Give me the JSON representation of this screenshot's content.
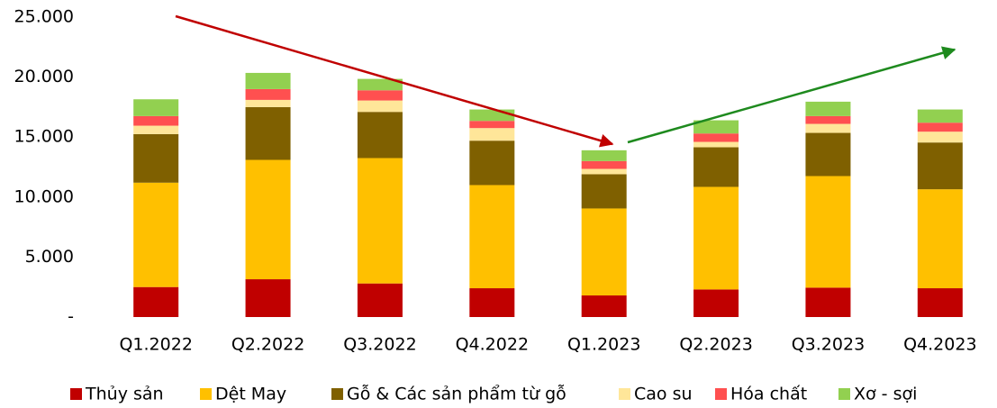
{
  "chart_data": {
    "type": "stacked_bar",
    "categories": [
      "Q1.2022",
      "Q2.2022",
      "Q3.2022",
      "Q4.2022",
      "Q1.2023",
      "Q2.2023",
      "Q3.2023",
      "Q4.2023"
    ],
    "series": [
      {
        "name": "Thủy sản",
        "color": "#c00000",
        "values": [
          2500,
          3150,
          2800,
          2400,
          1800,
          2300,
          2450,
          2400
        ]
      },
      {
        "name": "Dệt May",
        "color": "#ffc000",
        "values": [
          8700,
          9950,
          10450,
          8600,
          7250,
          8550,
          9300,
          8250
        ]
      },
      {
        "name": "Gỗ & Các sản phẩm từ gỗ",
        "color": "#7f6000",
        "values": [
          4050,
          4400,
          3850,
          3700,
          2850,
          3300,
          3600,
          3900
        ]
      },
      {
        "name": "Cao su",
        "color": "#ffe699",
        "values": [
          700,
          600,
          950,
          1050,
          450,
          450,
          750,
          900
        ]
      },
      {
        "name": "Hóa chất",
        "color": "#ff5050",
        "values": [
          800,
          900,
          850,
          600,
          650,
          700,
          650,
          750
        ]
      },
      {
        "name": "Xơ - sợi",
        "color": "#92d050",
        "values": [
          1400,
          1350,
          950,
          950,
          900,
          1100,
          1200,
          1100
        ]
      }
    ],
    "ylim": [
      0,
      25000
    ],
    "yticks": [
      {
        "value": 0,
        "label": "-"
      },
      {
        "value": 5000,
        "label": "5.000"
      },
      {
        "value": 10000,
        "label": "10.000"
      },
      {
        "value": 15000,
        "label": "15.000"
      },
      {
        "value": 20000,
        "label": "20.000"
      },
      {
        "value": 25000,
        "label": "25.000"
      }
    ],
    "grid": false,
    "legend": "bottom"
  }
}
